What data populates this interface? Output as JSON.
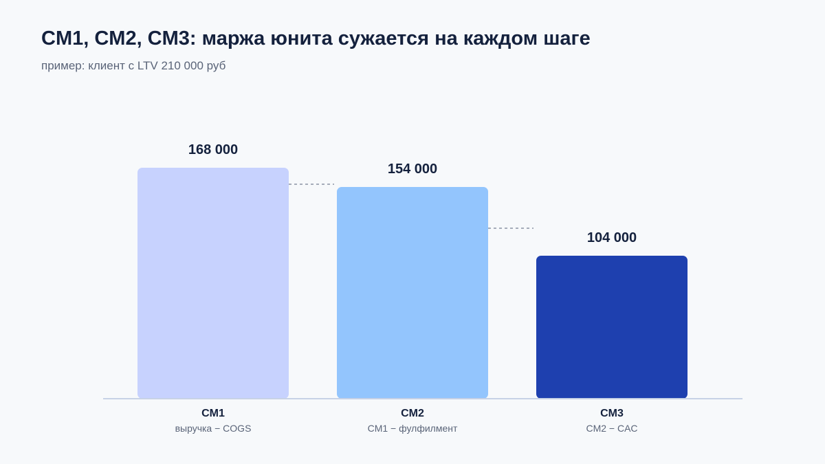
{
  "title": "CM1, CM2, CM3: маржа юнита сужается на каждом шаге",
  "subtitle": "пример: клиент с LTV 210 000 руб",
  "chart_data": {
    "type": "bar",
    "title": "CM1, CM2, CM3: маржа юнита сужается на каждом шаге",
    "subtitle": "пример: клиент с LTV 210 000 руб",
    "categories": [
      "CM1",
      "CM2",
      "CM3"
    ],
    "category_descriptions": [
      "выручка − COGS",
      "CM1 − фулфилмент",
      "CM2 − CAC"
    ],
    "values": [
      168000,
      154000,
      104000
    ],
    "value_labels": [
      "168 000",
      "154 000",
      "104 000"
    ],
    "colors": [
      "#c7d2fe",
      "#93c5fd",
      "#1e40af"
    ],
    "ylim": [
      0,
      210000
    ],
    "grid": false,
    "legend": "none",
    "connectors": "dashed"
  }
}
